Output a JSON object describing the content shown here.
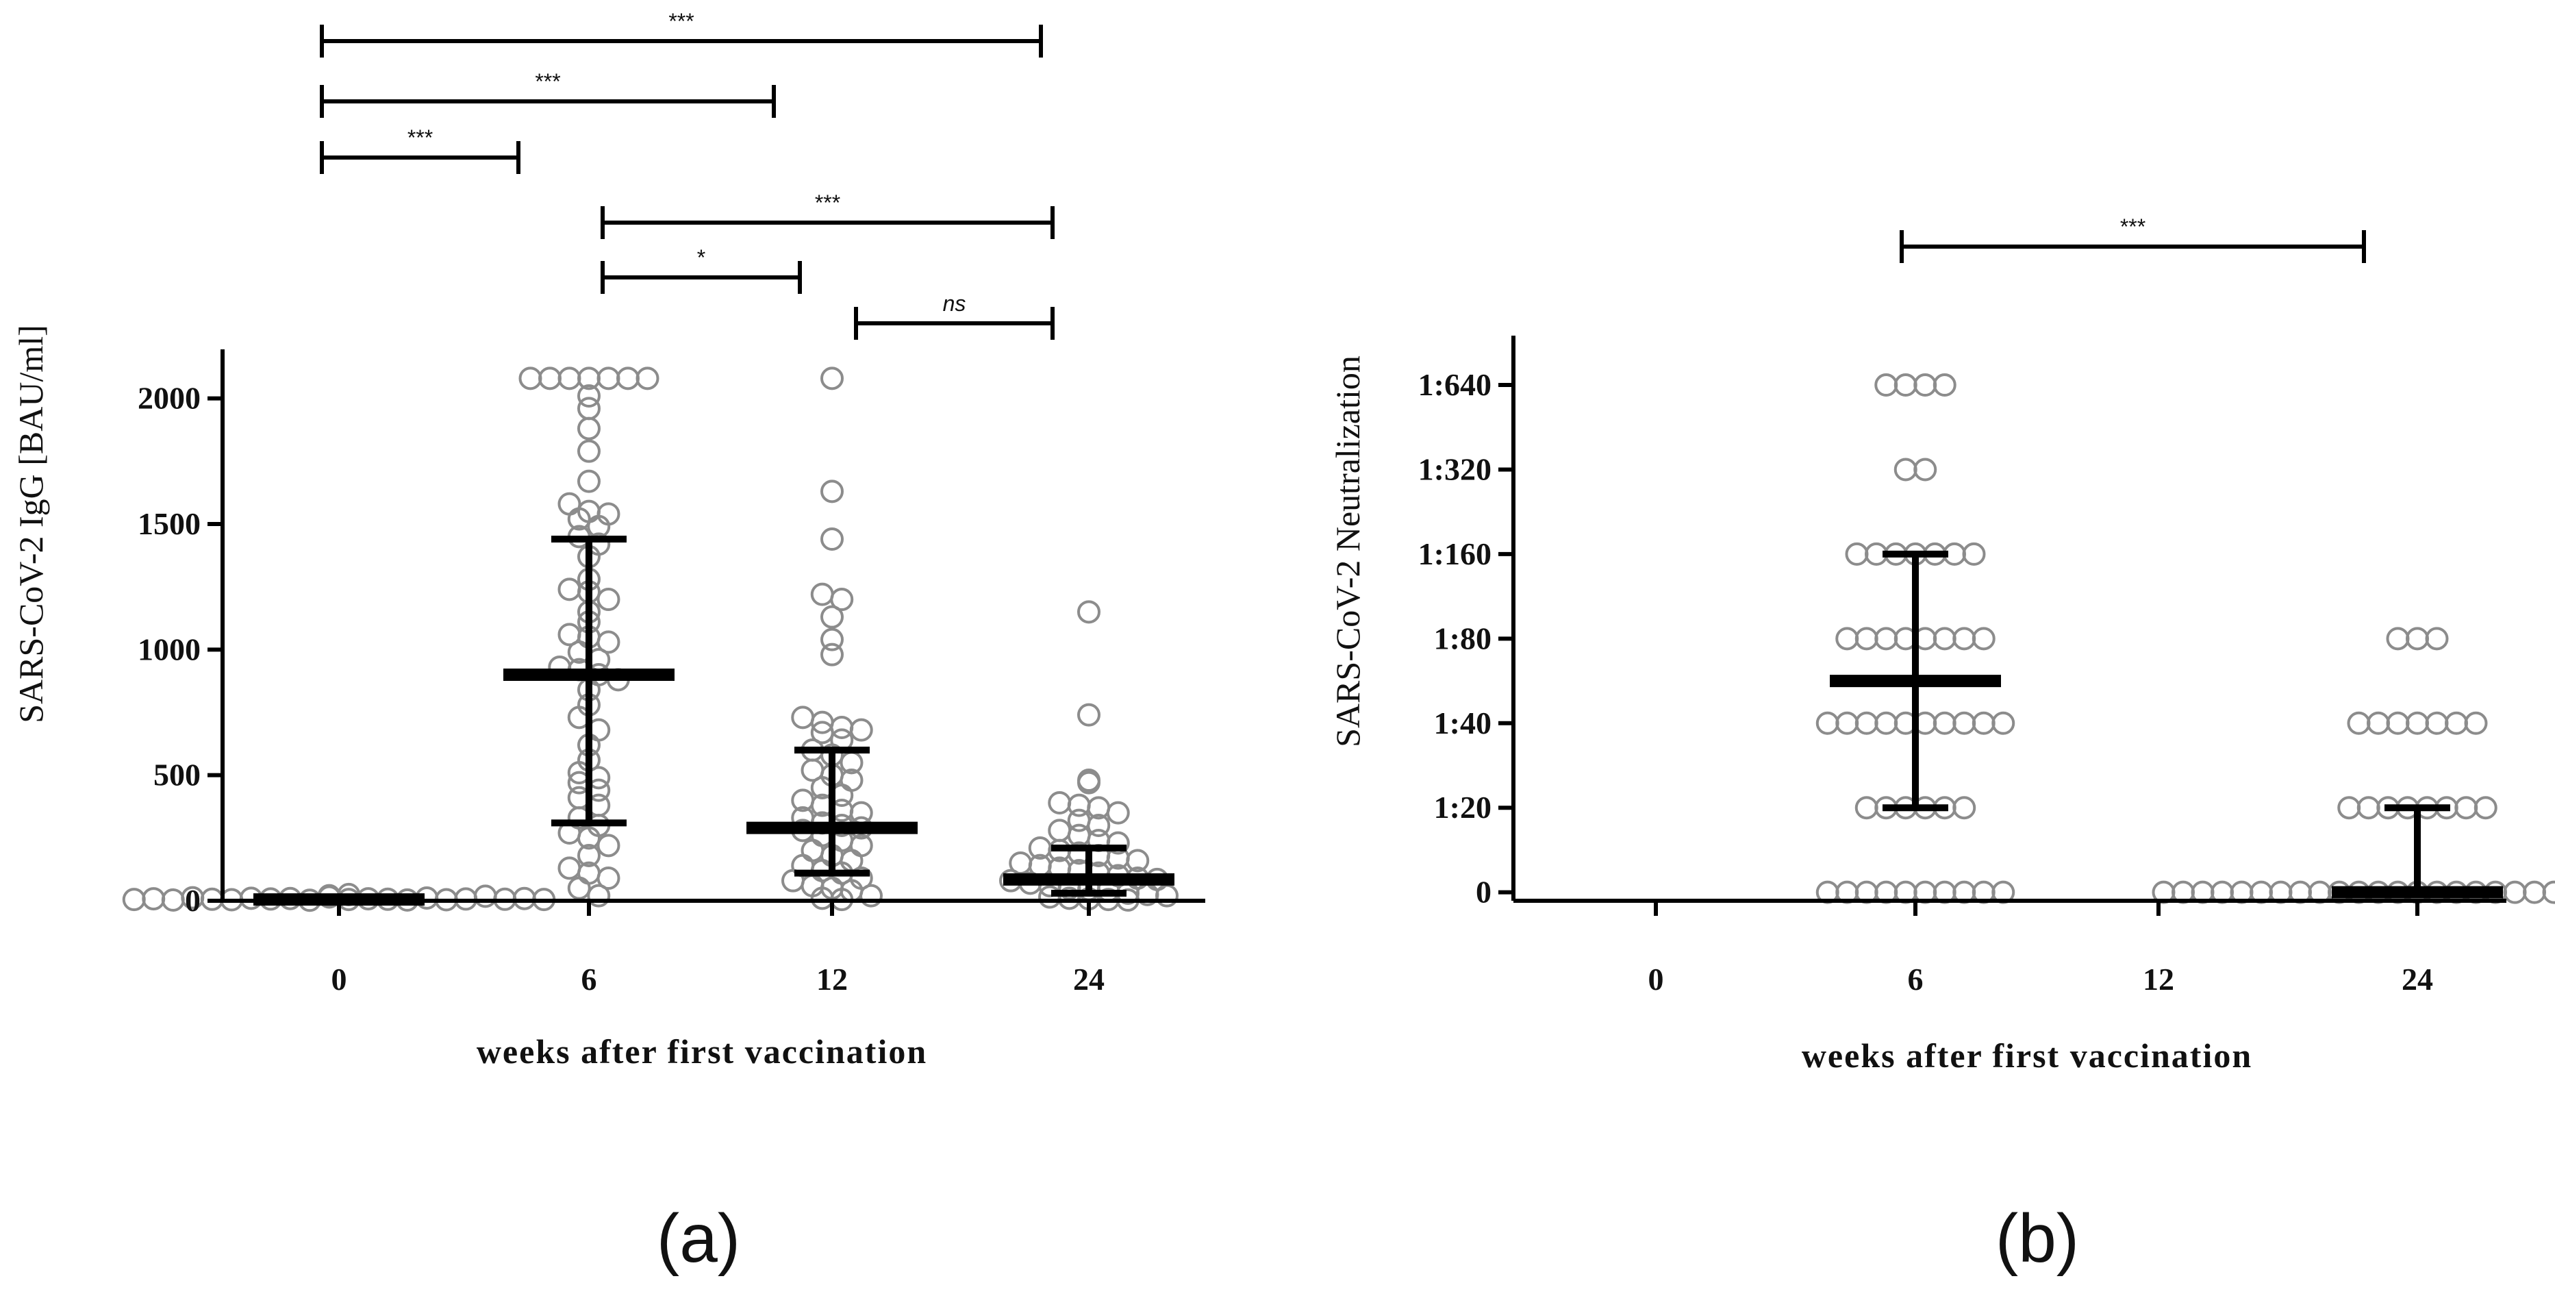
{
  "chart_data": [
    {
      "type": "scatter",
      "panel_label": "(a)",
      "title": "",
      "xlabel": "weeks after first vaccination",
      "ylabel": "SARS-CoV-2 IgG [BAU/ml]",
      "categories": [
        "0",
        "6",
        "12",
        "24"
      ],
      "ylim": [
        0,
        2100
      ],
      "yticks": [
        0,
        500,
        1000,
        1500,
        2000
      ],
      "ytick_labels": [
        "0",
        "500",
        "1000",
        "1500",
        "2000"
      ],
      "colors": {
        "marker": "#8c8c8c",
        "summary": "#000000"
      },
      "series": [
        {
          "name": "0",
          "values": [
            5,
            8,
            3,
            12,
            6,
            4,
            10,
            7,
            9,
            2,
            15,
            5,
            20,
            8,
            6,
            3,
            11,
            4,
            7,
            18,
            6,
            9,
            25,
            5
          ]
        },
        {
          "name": "6",
          "values": [
            2080,
            2080,
            2080,
            2080,
            2080,
            2080,
            2080,
            2010,
            1960,
            1880,
            1790,
            1670,
            1580,
            1550,
            1540,
            1520,
            1490,
            1450,
            1420,
            1370,
            1280,
            1240,
            1230,
            1200,
            1150,
            1110,
            1060,
            1050,
            1030,
            990,
            960,
            930,
            920,
            900,
            880,
            840,
            780,
            730,
            680,
            620,
            560,
            510,
            490,
            470,
            440,
            410,
            380,
            330,
            300,
            270,
            250,
            220,
            180,
            130,
            110,
            90,
            50,
            20
          ]
        },
        {
          "name": "12",
          "values": [
            2080,
            1630,
            1440,
            1220,
            1200,
            1130,
            1040,
            980,
            730,
            710,
            690,
            680,
            670,
            640,
            600,
            580,
            550,
            520,
            500,
            480,
            450,
            420,
            400,
            380,
            360,
            350,
            330,
            310,
            300,
            290,
            280,
            260,
            240,
            220,
            200,
            180,
            160,
            140,
            120,
            110,
            90,
            80,
            60,
            50,
            40,
            20,
            10,
            5
          ]
        },
        {
          "name": "24",
          "values": [
            1150,
            740,
            480,
            470,
            390,
            380,
            370,
            350,
            320,
            300,
            280,
            260,
            240,
            230,
            210,
            200,
            190,
            180,
            170,
            160,
            150,
            140,
            130,
            120,
            110,
            100,
            90,
            85,
            80,
            70,
            60,
            50,
            45,
            40,
            30,
            25,
            20,
            15,
            10,
            8,
            5,
            3
          ]
        }
      ],
      "summary": [
        {
          "category": "0",
          "median": 5,
          "q1": 2,
          "q3": 10
        },
        {
          "category": "6",
          "median": 900,
          "q1": 310,
          "q3": 1440
        },
        {
          "category": "12",
          "median": 290,
          "q1": 110,
          "q3": 600
        },
        {
          "category": "24",
          "median": 85,
          "q1": 30,
          "q3": 210
        }
      ],
      "comparisons": [
        {
          "from": "0",
          "to": "24",
          "label": "***"
        },
        {
          "from": "0",
          "to": "12",
          "label": "***"
        },
        {
          "from": "0",
          "to": "6",
          "label": "***"
        },
        {
          "from": "6",
          "to": "24",
          "label": "***"
        },
        {
          "from": "6",
          "to": "12",
          "label": "*"
        },
        {
          "from": "12",
          "to": "24",
          "label": "ns"
        }
      ]
    },
    {
      "type": "scatter",
      "panel_label": "(b)",
      "title": "",
      "xlabel": "weeks after first vaccination",
      "ylabel": "SARS-CoV-2 Neutralization",
      "categories": [
        "0",
        "6",
        "12",
        "24"
      ],
      "ylim": [
        -0.1,
        6.3
      ],
      "yticks": [
        0,
        1,
        2,
        3,
        4,
        5,
        6
      ],
      "ytick_labels": [
        "0",
        "1:20",
        "1:40",
        "1:80",
        "1:160",
        "1:320",
        "1:640"
      ],
      "colors": {
        "marker": "#8c8c8c",
        "summary": "#000000"
      },
      "series": [
        {
          "name": "6",
          "values": [
            6,
            6,
            6,
            6,
            5,
            5,
            4,
            4,
            4,
            4,
            4,
            4,
            4,
            3,
            3,
            3,
            3,
            3,
            3,
            3,
            3,
            2,
            2,
            2,
            2,
            2,
            2,
            2,
            2,
            2,
            2,
            1,
            1,
            1,
            1,
            1,
            1,
            0,
            0,
            0,
            0,
            0,
            0,
            0,
            0,
            0,
            0
          ]
        },
        {
          "name": "24",
          "values": [
            3,
            3,
            3,
            2,
            2,
            2,
            2,
            2,
            2,
            2,
            1,
            1,
            1,
            1,
            1,
            1,
            1,
            1,
            0,
            0,
            0,
            0,
            0,
            0,
            0,
            0,
            0,
            0,
            0,
            0,
            0,
            0,
            0,
            0,
            0,
            0,
            0,
            0,
            0,
            0,
            0,
            0,
            0,
            0,
            0
          ]
        }
      ],
      "summary": [
        {
          "category": "6",
          "median": 2.5,
          "q1": 1,
          "q3": 4
        },
        {
          "category": "24",
          "median": 0,
          "q1": 0,
          "q3": 1
        }
      ],
      "comparisons": [
        {
          "from": "6",
          "to": "24",
          "label": "***"
        }
      ]
    }
  ]
}
